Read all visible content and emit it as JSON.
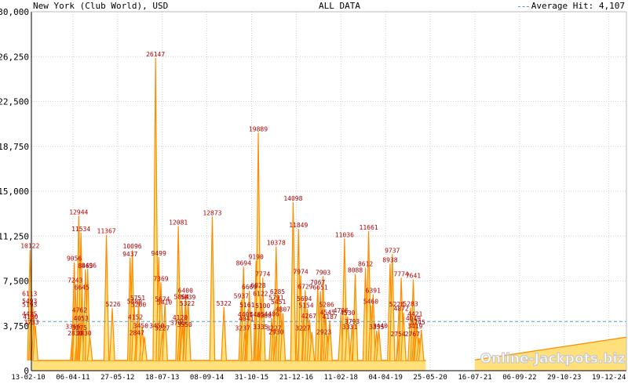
{
  "header": {
    "title": "New York (Club World), USD",
    "center": "ALL DATA",
    "legend_label": "Average Hit: 4,107"
  },
  "watermark": "Online-Jackpots.biz",
  "colors": {
    "line": "#ff8c00",
    "fill": "#ffe07a",
    "average": "#4a9fcc",
    "label": "#b30000",
    "grid": "#d0d0d0"
  },
  "chart_data": {
    "type": "area",
    "ylim": [
      0,
      30000
    ],
    "yticks": [
      "0",
      "3,750",
      "7,500",
      "11,250",
      "15,000",
      "18,750",
      "22,500",
      "26,250",
      "30,000"
    ],
    "ytick_values": [
      0,
      3750,
      7500,
      11250,
      15000,
      18750,
      22500,
      26250,
      30000
    ],
    "xticks": [
      "13-02-10",
      "06-04-11",
      "27-05-12",
      "18-07-13",
      "08-09-14",
      "31-10-15",
      "21-12-16",
      "11-02-18",
      "04-04-19",
      "25-05-20",
      "16-07-21",
      "06-09-22",
      "29-10-23",
      "19-12-24"
    ],
    "xlim": [
      0,
      13.55
    ],
    "average": 4107,
    "baseline": 850,
    "tail": {
      "start_x": 10.0,
      "start_y": 900,
      "end_x": 13.55,
      "end_y": 2800
    },
    "peaks": [
      [
        0.04,
        10122
      ],
      [
        0.07,
        6113
      ],
      [
        0.1,
        5493
      ],
      [
        0.13,
        4425
      ],
      [
        0.16,
        3733
      ],
      [
        1.13,
        12944
      ],
      [
        1.03,
        9056
      ],
      [
        1.18,
        11534
      ],
      [
        1.33,
        8496
      ],
      [
        1.2,
        6645
      ],
      [
        1.05,
        7243
      ],
      [
        1.28,
        8463
      ],
      [
        1.15,
        4762
      ],
      [
        1.2,
        4053
      ],
      [
        1.0,
        3366
      ],
      [
        1.1,
        2830
      ],
      [
        1.38,
        2830
      ],
      [
        1.75,
        11367
      ],
      [
        1.88,
        5226
      ],
      [
        2.33,
        10096
      ],
      [
        2.28,
        9437
      ],
      [
        2.37,
        5700
      ],
      [
        2.47,
        5751
      ],
      [
        2.44,
        4152
      ],
      [
        2.6,
        2847
      ],
      [
        2.55,
        3750
      ],
      [
        2.85,
        26147
      ],
      [
        2.92,
        9499
      ],
      [
        2.97,
        7369
      ],
      [
        3.06,
        5674
      ],
      [
        3.0,
        3227
      ],
      [
        3.36,
        12081
      ],
      [
        3.52,
        6400
      ],
      [
        3.44,
        5864
      ],
      [
        3.58,
        5839
      ],
      [
        3.53,
        5322
      ],
      [
        3.4,
        4120
      ],
      [
        3.45,
        3705
      ],
      [
        4.12,
        12873
      ],
      [
        4.38,
        5322
      ],
      [
        4.82,
        8694
      ],
      [
        4.95,
        6669
      ],
      [
        4.77,
        5937
      ],
      [
        4.92,
        5161
      ],
      [
        4.85,
        3237
      ],
      [
        4.9,
        4041
      ],
      [
        5.15,
        19889
      ],
      [
        5.1,
        9190
      ],
      [
        5.25,
        7774
      ],
      [
        5.2,
        6122
      ],
      [
        5.12,
        6828
      ],
      [
        5.18,
        4405
      ],
      [
        5.22,
        3335
      ],
      [
        5.55,
        10378
      ],
      [
        5.5,
        5100
      ],
      [
        5.6,
        6285
      ],
      [
        5.65,
        5451
      ],
      [
        5.7,
        4807
      ],
      [
        5.45,
        4406
      ],
      [
        5.55,
        2930
      ],
      [
        5.93,
        14098
      ],
      [
        6.05,
        11849
      ],
      [
        6.1,
        7974
      ],
      [
        6.2,
        6729
      ],
      [
        6.18,
        5694
      ],
      [
        6.25,
        5154
      ],
      [
        6.3,
        4267
      ],
      [
        6.08,
        3227
      ],
      [
        6.35,
        3227
      ],
      [
        6.6,
        7903
      ],
      [
        6.48,
        7067
      ],
      [
        6.54,
        6651
      ],
      [
        6.62,
        5206
      ],
      [
        6.75,
        4187
      ],
      [
        6.66,
        4545
      ],
      [
        6.7,
        2923
      ],
      [
        7.08,
        11036
      ],
      [
        7.0,
        4706
      ],
      [
        7.15,
        4530
      ],
      [
        7.25,
        3793
      ],
      [
        7.32,
        8088
      ],
      [
        7.3,
        3331
      ],
      [
        7.62,
        11661
      ],
      [
        7.55,
        8612
      ],
      [
        7.72,
        6391
      ],
      [
        7.67,
        5460
      ],
      [
        7.8,
        3335
      ],
      [
        7.85,
        3440
      ],
      [
        8.15,
        9737
      ],
      [
        8.1,
        8938
      ],
      [
        8.35,
        7774
      ],
      [
        8.3,
        5228
      ],
      [
        8.4,
        4872
      ],
      [
        8.3,
        2754
      ],
      [
        8.62,
        7641
      ],
      [
        8.56,
        5283
      ],
      [
        8.68,
        4421
      ],
      [
        8.7,
        3745
      ],
      [
        8.65,
        4049
      ],
      [
        8.75,
        2767
      ],
      [
        8.8,
        3419
      ]
    ],
    "labels": [
      [
        0.04,
        10122,
        "10122"
      ],
      [
        0.03,
        6113,
        "6113"
      ],
      [
        0.03,
        5493,
        "5493"
      ],
      [
        0.03,
        5193,
        "5193"
      ],
      [
        0.03,
        4425,
        "4425"
      ],
      [
        0.05,
        4180,
        "4180"
      ],
      [
        0.07,
        3733,
        "3733"
      ],
      [
        1.13,
        12944,
        "12944"
      ],
      [
        1.18,
        11534,
        "11534"
      ],
      [
        1.03,
        9056,
        "9056"
      ],
      [
        1.28,
        8463,
        "8463"
      ],
      [
        1.36,
        8496,
        "8496"
      ],
      [
        1.05,
        7243,
        "7243"
      ],
      [
        1.2,
        6645,
        "6645"
      ],
      [
        1.15,
        4762,
        "4762"
      ],
      [
        1.18,
        4053,
        "4053"
      ],
      [
        1.0,
        3366,
        "3366"
      ],
      [
        1.15,
        3275,
        "3275"
      ],
      [
        1.05,
        2830,
        "2830"
      ],
      [
        1.25,
        2830,
        "2830"
      ],
      [
        1.75,
        11367,
        "11367"
      ],
      [
        1.9,
        5226,
        "5226"
      ],
      [
        2.33,
        10096,
        "10096"
      ],
      [
        2.28,
        9437,
        "9437"
      ],
      [
        2.45,
        5751,
        "5751"
      ],
      [
        2.38,
        5480,
        "5480"
      ],
      [
        2.47,
        5200,
        "5200"
      ],
      [
        2.4,
        4152,
        "4152"
      ],
      [
        2.52,
        3450,
        "3450"
      ],
      [
        2.43,
        2847,
        "2847"
      ],
      [
        2.85,
        26147,
        "26147"
      ],
      [
        2.92,
        9499,
        "9499"
      ],
      [
        2.97,
        7369,
        "7369"
      ],
      [
        3.0,
        5674,
        "5674"
      ],
      [
        3.05,
        5410,
        "5410"
      ],
      [
        3.0,
        3227,
        "3227"
      ],
      [
        2.88,
        3450,
        "3450"
      ],
      [
        3.36,
        12081,
        "12081"
      ],
      [
        3.52,
        6400,
        "6400"
      ],
      [
        3.43,
        5864,
        "5864"
      ],
      [
        3.58,
        5839,
        "5839"
      ],
      [
        3.56,
        5322,
        "5322"
      ],
      [
        3.4,
        4120,
        "4120"
      ],
      [
        3.35,
        3705,
        "3705"
      ],
      [
        3.5,
        3550,
        "3550"
      ],
      [
        4.12,
        12873,
        "12873"
      ],
      [
        4.38,
        5322,
        "5322"
      ],
      [
        4.82,
        8694,
        "8694"
      ],
      [
        4.95,
        6669,
        "6669"
      ],
      [
        4.77,
        5937,
        "5937"
      ],
      [
        4.9,
        5161,
        "5161"
      ],
      [
        4.86,
        4405,
        "4405"
      ],
      [
        4.88,
        4041,
        "4041"
      ],
      [
        4.8,
        3237,
        "3237"
      ],
      [
        5.15,
        19889,
        "19889"
      ],
      [
        5.1,
        9190,
        "9190"
      ],
      [
        5.25,
        7774,
        "7774"
      ],
      [
        5.15,
        6828,
        "6828"
      ],
      [
        5.2,
        6122,
        "6122"
      ],
      [
        5.25,
        5100,
        "5100"
      ],
      [
        5.12,
        4405,
        "4405"
      ],
      [
        5.28,
        4300,
        "4300"
      ],
      [
        5.2,
        3335,
        "3335"
      ],
      [
        5.55,
        10378,
        "10378"
      ],
      [
        5.58,
        6285,
        "6285"
      ],
      [
        5.55,
        5791,
        "5791"
      ],
      [
        5.6,
        5451,
        "5451"
      ],
      [
        5.7,
        4807,
        "4807"
      ],
      [
        5.45,
        4406,
        "4406"
      ],
      [
        5.5,
        3227,
        "3227"
      ],
      [
        5.55,
        2930,
        "2930"
      ],
      [
        5.93,
        14098,
        "14098"
      ],
      [
        6.05,
        11849,
        "11849"
      ],
      [
        6.1,
        7974,
        "7974"
      ],
      [
        6.2,
        6729,
        "6729"
      ],
      [
        6.18,
        5694,
        "5694"
      ],
      [
        6.22,
        5154,
        "5154"
      ],
      [
        6.28,
        4267,
        "4267"
      ],
      [
        6.15,
        3227,
        "3227"
      ],
      [
        6.6,
        7903,
        "7903"
      ],
      [
        6.48,
        7067,
        "7067"
      ],
      [
        6.54,
        6651,
        "6651"
      ],
      [
        6.68,
        5206,
        "5206"
      ],
      [
        6.7,
        4545,
        "4545"
      ],
      [
        6.75,
        4187,
        "4187"
      ],
      [
        6.62,
        2923,
        "2923"
      ],
      [
        7.08,
        11036,
        "11036"
      ],
      [
        7.0,
        4706,
        "4706"
      ],
      [
        7.15,
        4530,
        "4530"
      ],
      [
        7.25,
        3793,
        "3793"
      ],
      [
        7.32,
        8088,
        "8088"
      ],
      [
        7.2,
        3331,
        "3331"
      ],
      [
        7.62,
        11661,
        "11661"
      ],
      [
        7.55,
        8612,
        "8612"
      ],
      [
        7.72,
        6391,
        "6391"
      ],
      [
        7.67,
        5460,
        "5460"
      ],
      [
        7.8,
        3335,
        "3335"
      ],
      [
        7.88,
        3440,
        "3440"
      ],
      [
        8.15,
        9737,
        "9737"
      ],
      [
        8.1,
        8938,
        "8938"
      ],
      [
        8.35,
        7774,
        "7774"
      ],
      [
        8.25,
        5228,
        "5228"
      ],
      [
        8.35,
        4872,
        "4872"
      ],
      [
        8.28,
        2754,
        "2754"
      ],
      [
        8.62,
        7641,
        "7641"
      ],
      [
        8.56,
        5283,
        "5283"
      ],
      [
        8.66,
        4421,
        "4421"
      ],
      [
        8.62,
        4049,
        "4049"
      ],
      [
        8.72,
        3745,
        "3745"
      ],
      [
        8.66,
        3419,
        "3419"
      ],
      [
        8.6,
        2767,
        "2767"
      ]
    ]
  }
}
